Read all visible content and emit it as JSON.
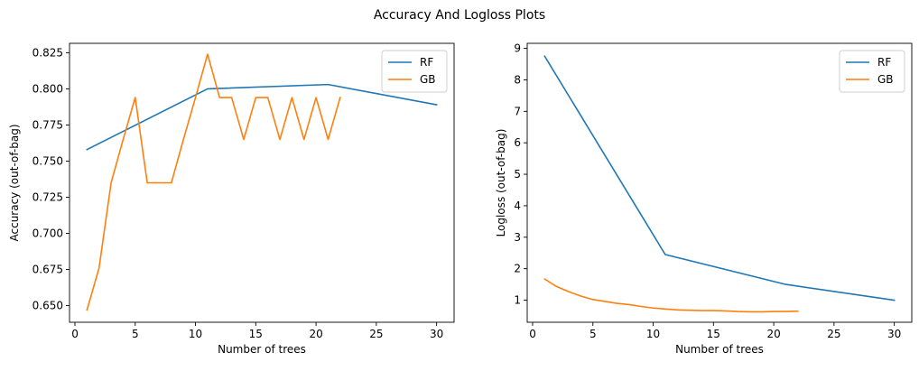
{
  "figure": {
    "title": "Accuracy And Logloss Plots"
  },
  "colors": {
    "rf": "#1f77b4",
    "gb": "#ff7f0e",
    "axis": "#000000",
    "legend_border": "#cccccc"
  },
  "chart_data": [
    {
      "type": "line",
      "title": "",
      "xlabel": "Number of trees",
      "ylabel": "Accuracy (out-of-bag)",
      "xlim": [
        -0.45,
        31.45
      ],
      "ylim": [
        0.6385,
        0.8315
      ],
      "xticks": [
        0,
        5,
        10,
        15,
        20,
        25,
        30
      ],
      "xtick_labels": [
        "0",
        "5",
        "10",
        "15",
        "20",
        "25",
        "30"
      ],
      "yticks": [
        0.65,
        0.675,
        0.7,
        0.725,
        0.75,
        0.775,
        0.8,
        0.825
      ],
      "ytick_labels": [
        "0.650",
        "0.675",
        "0.700",
        "0.725",
        "0.750",
        "0.775",
        "0.800",
        "0.825"
      ],
      "grid": false,
      "legend_position": "top-right",
      "series": [
        {
          "name": "RF",
          "color": "#1f77b4",
          "x": [
            1,
            11,
            21,
            30
          ],
          "y": [
            0.758,
            0.8,
            0.803,
            0.789
          ]
        },
        {
          "name": "GB",
          "color": "#ff7f0e",
          "x": [
            1,
            2,
            3,
            4,
            5,
            6,
            7,
            8,
            9,
            10,
            11,
            12,
            13,
            14,
            15,
            16,
            17,
            18,
            19,
            20,
            21,
            22
          ],
          "y": [
            0.647,
            0.676,
            0.735,
            0.765,
            0.794,
            0.735,
            0.735,
            0.735,
            0.765,
            0.794,
            0.824,
            0.794,
            0.794,
            0.765,
            0.794,
            0.794,
            0.765,
            0.794,
            0.765,
            0.794,
            0.765,
            0.794
          ]
        }
      ]
    },
    {
      "type": "line",
      "title": "",
      "xlabel": "Number of trees",
      "ylabel": "Logloss (out-of-bag)",
      "xlim": [
        -0.45,
        31.45
      ],
      "ylim": [
        0.2985,
        9.16
      ],
      "xticks": [
        0,
        5,
        10,
        15,
        20,
        25,
        30
      ],
      "xtick_labels": [
        "0",
        "5",
        "10",
        "15",
        "20",
        "25",
        "30"
      ],
      "yticks": [
        1,
        2,
        3,
        4,
        5,
        6,
        7,
        8,
        9
      ],
      "ytick_labels": [
        "1",
        "2",
        "3",
        "4",
        "5",
        "6",
        "7",
        "8",
        "9"
      ],
      "grid": false,
      "legend_position": "top-right",
      "series": [
        {
          "name": "RF",
          "color": "#1f77b4",
          "x": [
            1,
            11,
            21,
            30
          ],
          "y": [
            8.75,
            2.45,
            1.5,
            1.0
          ]
        },
        {
          "name": "GB",
          "color": "#ff7f0e",
          "x": [
            1,
            2,
            3,
            4,
            5,
            6,
            7,
            8,
            9,
            10,
            11,
            12,
            13,
            14,
            15,
            16,
            17,
            18,
            19,
            20,
            21,
            22
          ],
          "y": [
            1.67,
            1.43,
            1.27,
            1.13,
            1.02,
            0.96,
            0.9,
            0.86,
            0.8,
            0.75,
            0.72,
            0.69,
            0.68,
            0.67,
            0.67,
            0.66,
            0.64,
            0.63,
            0.63,
            0.64,
            0.64,
            0.65
          ]
        }
      ]
    }
  ]
}
